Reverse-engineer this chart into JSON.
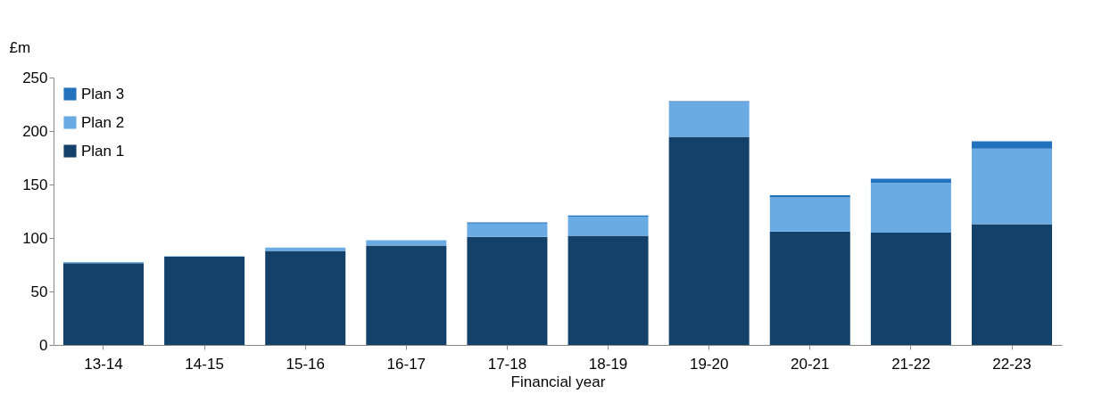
{
  "chart_data": {
    "type": "bar",
    "stacked": true,
    "xlabel": "Financial year",
    "ylabel": "£m",
    "categories": [
      "13-14",
      "14-15",
      "15-16",
      "16-17",
      "17-18",
      "18-19",
      "19-20",
      "20-21",
      "21-22",
      "22-23"
    ],
    "series": [
      {
        "name": "Plan 1",
        "color": "#134169",
        "values": [
          76.5,
          82.5,
          88,
          93,
          101,
          102,
          194.5,
          106,
          105,
          113
        ]
      },
      {
        "name": "Plan 2",
        "color": "#6aabe4",
        "values": [
          1,
          0.5,
          3,
          5,
          12.5,
          18,
          32.5,
          32,
          46.5,
          70.5
        ]
      },
      {
        "name": "Plan 3",
        "color": "#2272bd",
        "values": [
          0,
          0,
          0,
          0,
          1,
          1,
          1,
          2,
          4,
          7
        ]
      }
    ],
    "ylim": [
      0,
      250
    ],
    "yticks": [
      0,
      50,
      100,
      150,
      200,
      250
    ],
    "grid": false,
    "legend": "top left"
  }
}
